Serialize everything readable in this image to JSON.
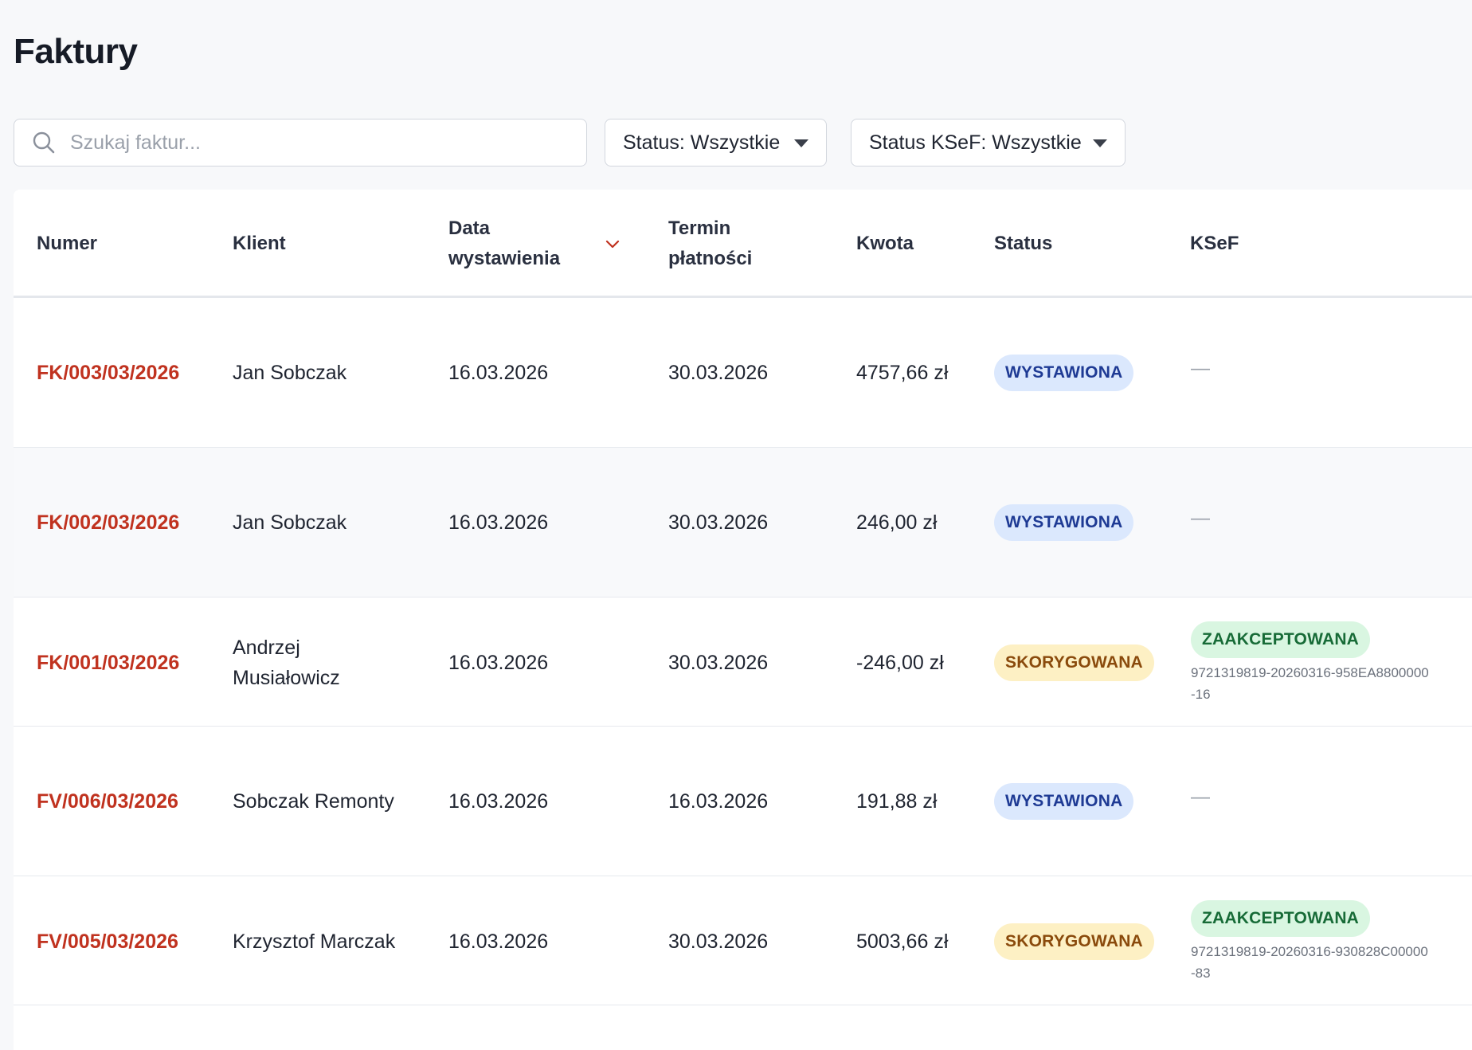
{
  "page": {
    "title": "Faktury"
  },
  "filters": {
    "search_placeholder": "Szukaj faktur...",
    "status_label": "Status: Wszystkie",
    "ksef_status_label": "Status KSeF: Wszystkie"
  },
  "table": {
    "columns": {
      "number": "Numer",
      "client": "Klient",
      "issue_date_line1": "Data",
      "issue_date_line2": "wystawienia",
      "due_date_line1": "Termin",
      "due_date_line2": "płatności",
      "amount": "Kwota",
      "status": "Status",
      "ksef": "KSeF"
    },
    "rows": [
      {
        "number": "FK/003/03/2026",
        "client": "Jan Sobczak",
        "issue_date": "16.03.2026",
        "due_date": "30.03.2026",
        "amount": "4757,66 zł",
        "status": "WYSTAWIONA",
        "ksef": "—"
      },
      {
        "number": "FK/002/03/2026",
        "client": "Jan Sobczak",
        "issue_date": "16.03.2026",
        "due_date": "30.03.2026",
        "amount": "246,00 zł",
        "status": "WYSTAWIONA",
        "ksef": "—"
      },
      {
        "number": "FK/001/03/2026",
        "client_line1": "Andrzej",
        "client_line2": "Musiałowicz",
        "issue_date": "16.03.2026",
        "due_date": "30.03.2026",
        "amount": "-246,00 zł",
        "status": "SKORYGOWANA",
        "ksef_status": "ZAAKCEPTOWANA",
        "ksef_id_line1": "9721319819-20260316-958EA8800000",
        "ksef_id_line2": "-16"
      },
      {
        "number": "FV/006/03/2026",
        "client": "Sobczak Remonty",
        "issue_date": "16.03.2026",
        "due_date": "16.03.2026",
        "amount": "191,88 zł",
        "status": "WYSTAWIONA",
        "ksef": "—"
      },
      {
        "number": "FV/005/03/2026",
        "client": "Krzysztof Marczak",
        "issue_date": "16.03.2026",
        "due_date": "30.03.2026",
        "amount": "5003,66 zł",
        "status": "SKORYGOWANA",
        "ksef_status": "ZAAKCEPTOWANA",
        "ksef_id_line1": "9721319819-20260316-930828C00000",
        "ksef_id_line2": "-83"
      }
    ]
  },
  "colors": {
    "invoice_number": "#c0321f",
    "badge_issued_bg": "#dbe8fd",
    "badge_corrected_bg": "#fdf0c4",
    "badge_accepted_bg": "#d9f6e1"
  },
  "icons": {
    "search": "search-icon",
    "sort": "chevron-down-icon",
    "dropdown": "caret-down-icon"
  }
}
